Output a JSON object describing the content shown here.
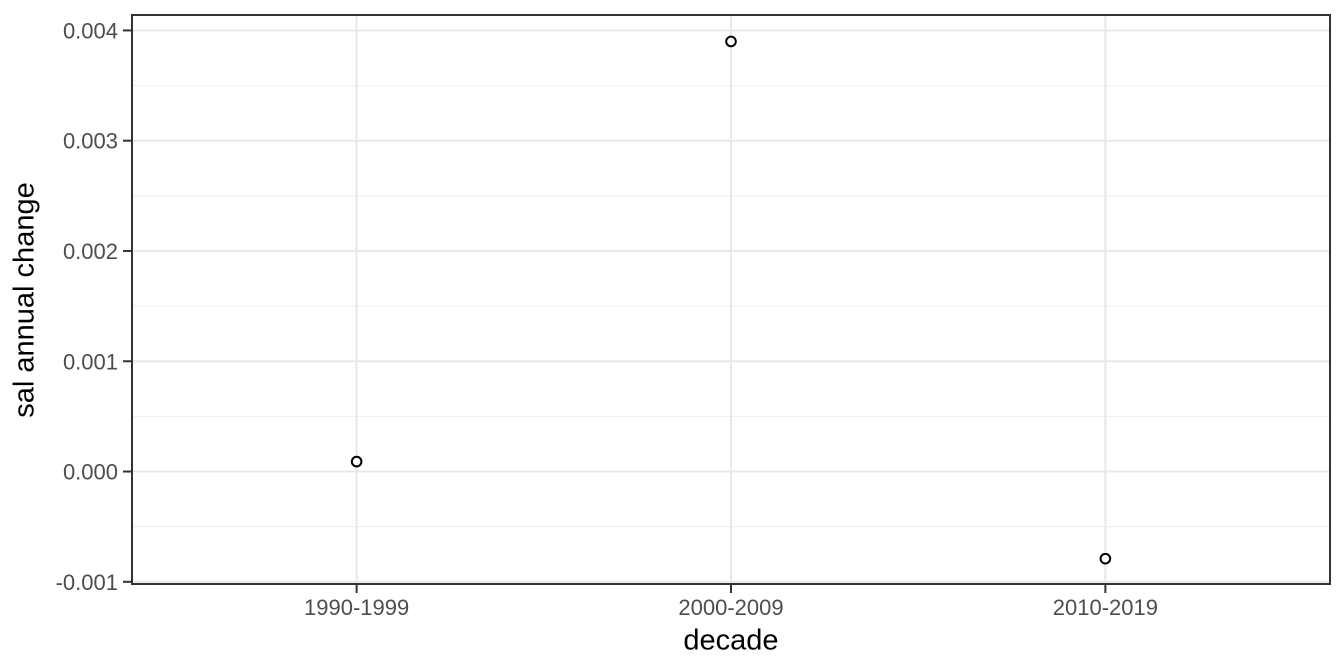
{
  "chart_data": {
    "type": "scatter",
    "title": "",
    "xlabel": "decade",
    "ylabel": "sal annual change",
    "categories": [
      "1990-1999",
      "2000-2009",
      "2010-2019"
    ],
    "values": [
      9e-05,
      0.0039,
      -0.00079
    ],
    "series": [
      {
        "name": "sal annual change",
        "values": [
          9e-05,
          0.0039,
          -0.00079
        ]
      }
    ],
    "ylim": [
      -0.00102,
      0.00414
    ],
    "yticks": {
      "values": [
        -0.001,
        0,
        0.001,
        0.002,
        0.003,
        0.004
      ],
      "labels": [
        "-0.001",
        "0.000",
        "0.001",
        "0.002",
        "0.003",
        "0.004"
      ]
    },
    "grid": "horizontal major+minor; vertical at category centers",
    "legend": "none",
    "marker": "open-circle",
    "colors": {
      "background": "#ffffff",
      "panel_background": "#ffffff",
      "panel_border": "#333333",
      "grid_major": "#e8e8e8",
      "grid_minor": "#f0f0f0",
      "tick_mark": "#333333",
      "tick_label": "#4d4d4d",
      "axis_title": "#000000",
      "point_stroke": "#000000",
      "point_fill": "#ffffff"
    }
  }
}
